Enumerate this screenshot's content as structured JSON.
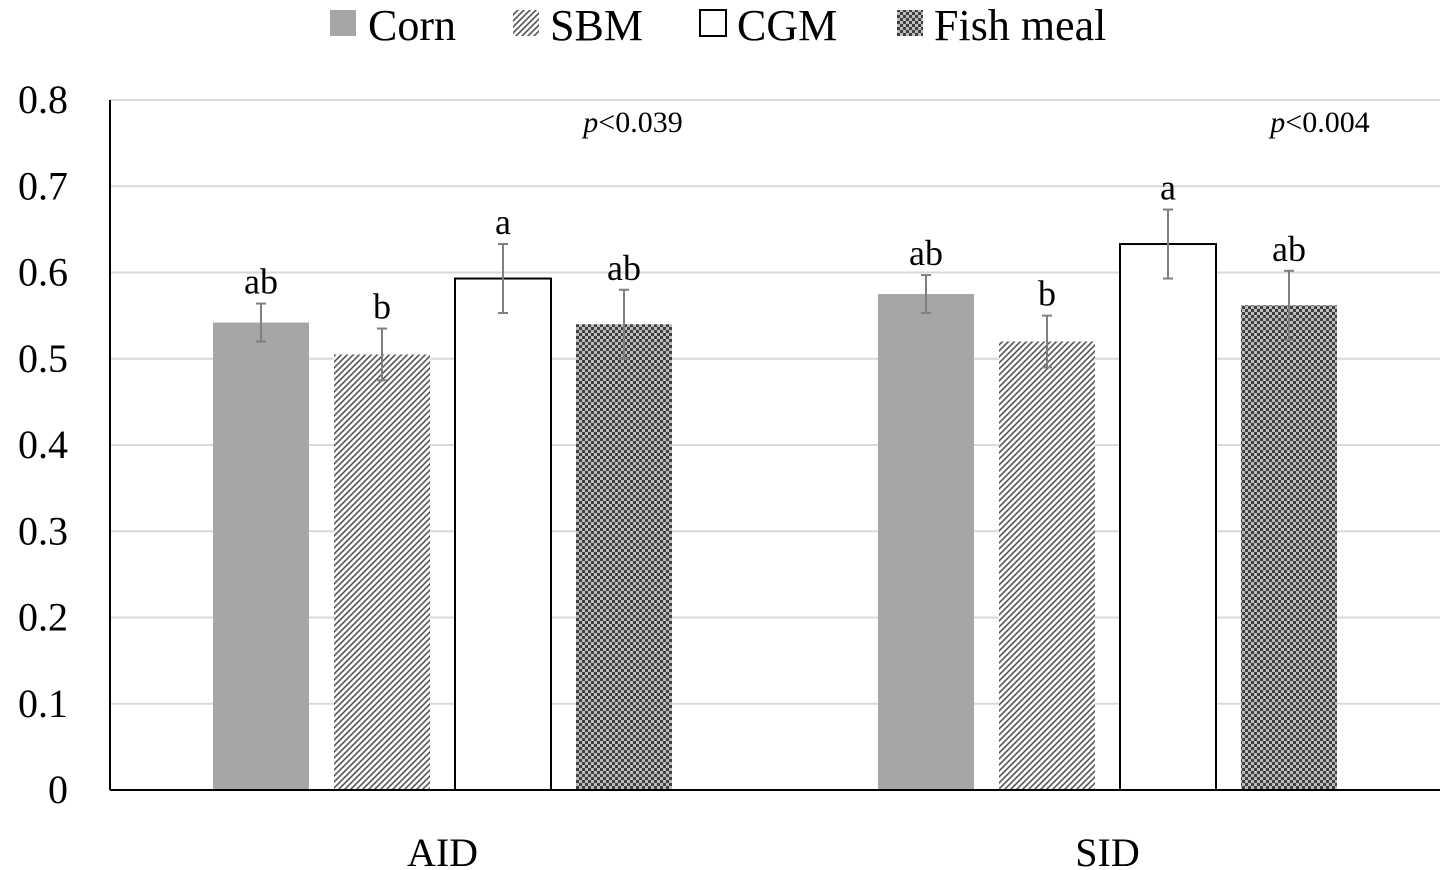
{
  "chart_data": {
    "type": "bar",
    "categories": [
      "AID",
      "SID"
    ],
    "series": [
      {
        "name": "Corn",
        "values": [
          0.542,
          0.575
        ],
        "errors": [
          0.022,
          0.022
        ],
        "letters": [
          "ab",
          "ab"
        ],
        "fill": "#a6a6a6",
        "pattern": "solid"
      },
      {
        "name": "SBM",
        "values": [
          0.505,
          0.52
        ],
        "errors": [
          0.03,
          0.03
        ],
        "letters": [
          "b",
          "b"
        ],
        "fill": "#ffffff",
        "pattern": "diagonal"
      },
      {
        "name": "CGM",
        "values": [
          0.593,
          0.633
        ],
        "errors": [
          0.04,
          0.04
        ],
        "letters": [
          "a",
          "a"
        ],
        "fill": "#ffffff",
        "pattern": "outline"
      },
      {
        "name": "Fish meal",
        "values": [
          0.54,
          0.562
        ],
        "errors": [
          0.04,
          0.04
        ],
        "letters": [
          "ab",
          "ab"
        ],
        "fill": "#808080",
        "pattern": "checker"
      }
    ],
    "annotations": [
      {
        "category": "AID",
        "italic": "p",
        "text": "<0.039"
      },
      {
        "category": "SID",
        "italic": "p",
        "text": "<0.004"
      }
    ],
    "yticks": [
      "0",
      "0.1",
      "0.2",
      "0.3",
      "0.4",
      "0.5",
      "0.6",
      "0.7",
      "0.8"
    ],
    "ylim": [
      0,
      0.8
    ],
    "grid": true,
    "legend_position": "top",
    "title": "",
    "xlabel": "",
    "ylabel": ""
  }
}
